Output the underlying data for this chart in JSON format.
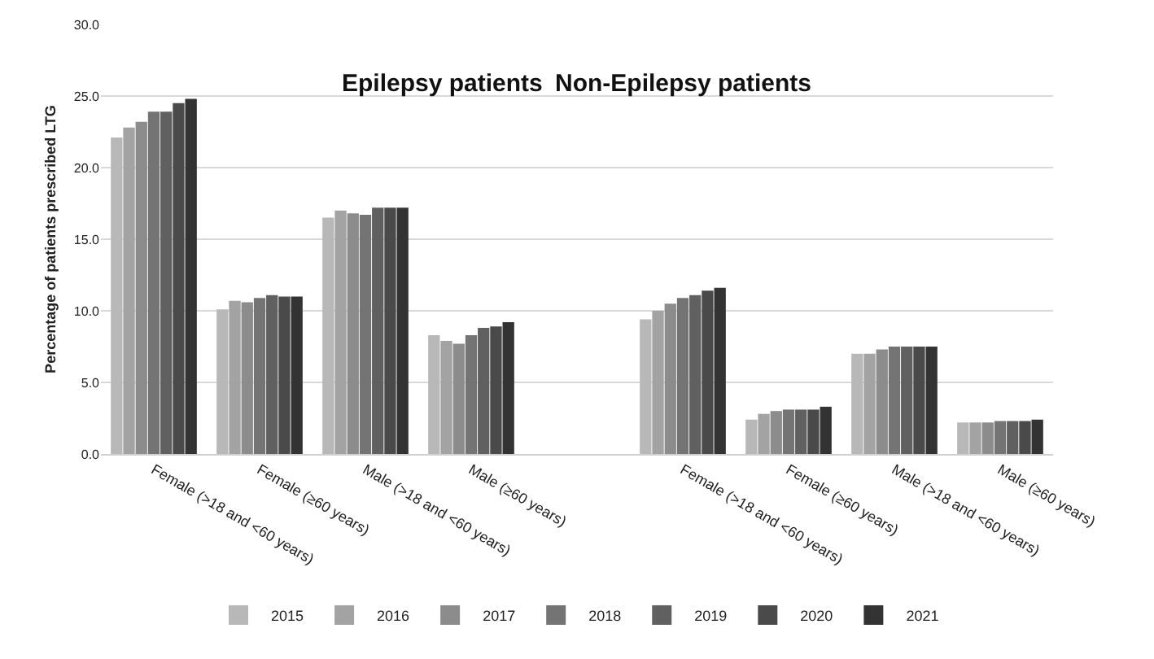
{
  "chart_data": {
    "type": "bar",
    "ylabel": "Percentage of patients prescribed LTG",
    "annotations": [
      "Epilepsy patients",
      "Non-Epilepsy patients"
    ],
    "categories": [
      "Female (>18 and <60 years)",
      "Female (≥60 years)",
      "Male (>18 and <60 years)",
      "Male (≥60 years)",
      null,
      "Female (>18 and <60 years)",
      "Female (≥60 years)",
      "Male (>18 and <60 years)",
      "Male (≥60 years)"
    ],
    "series": [
      {
        "name": "2015",
        "color": "#b8b8b8",
        "values": [
          22.1,
          10.1,
          16.5,
          8.3,
          null,
          9.4,
          2.4,
          7.0,
          2.2
        ]
      },
      {
        "name": "2016",
        "color": "#a3a3a3",
        "values": [
          22.8,
          10.7,
          17.0,
          7.9,
          null,
          10.0,
          2.8,
          7.0,
          2.2
        ]
      },
      {
        "name": "2017",
        "color": "#8c8c8c",
        "values": [
          23.2,
          10.6,
          16.8,
          7.7,
          null,
          10.5,
          3.0,
          7.3,
          2.2
        ]
      },
      {
        "name": "2018",
        "color": "#747474",
        "values": [
          23.9,
          10.9,
          16.7,
          8.3,
          null,
          10.9,
          3.1,
          7.5,
          2.3
        ]
      },
      {
        "name": "2019",
        "color": "#606060",
        "values": [
          23.9,
          11.1,
          17.2,
          8.8,
          null,
          11.1,
          3.1,
          7.5,
          2.3
        ]
      },
      {
        "name": "2020",
        "color": "#4a4a4a",
        "values": [
          24.5,
          11.0,
          17.2,
          8.9,
          null,
          11.4,
          3.1,
          7.5,
          2.3
        ]
      },
      {
        "name": "2021",
        "color": "#333333",
        "values": [
          24.8,
          11.0,
          17.2,
          9.2,
          null,
          11.6,
          3.3,
          7.5,
          2.4
        ]
      }
    ],
    "ylim": [
      0,
      30
    ],
    "yticks": [
      {
        "value": 0,
        "label": "0.0"
      },
      {
        "value": 5,
        "label": "5.0"
      },
      {
        "value": 10,
        "label": "10.0"
      },
      {
        "value": 15,
        "label": "15.0"
      },
      {
        "value": 20,
        "label": "20.0"
      },
      {
        "value": 25,
        "label": "25.0"
      },
      {
        "value": 30,
        "label": "30.0"
      }
    ],
    "grid": "y",
    "legend": "bottom"
  }
}
